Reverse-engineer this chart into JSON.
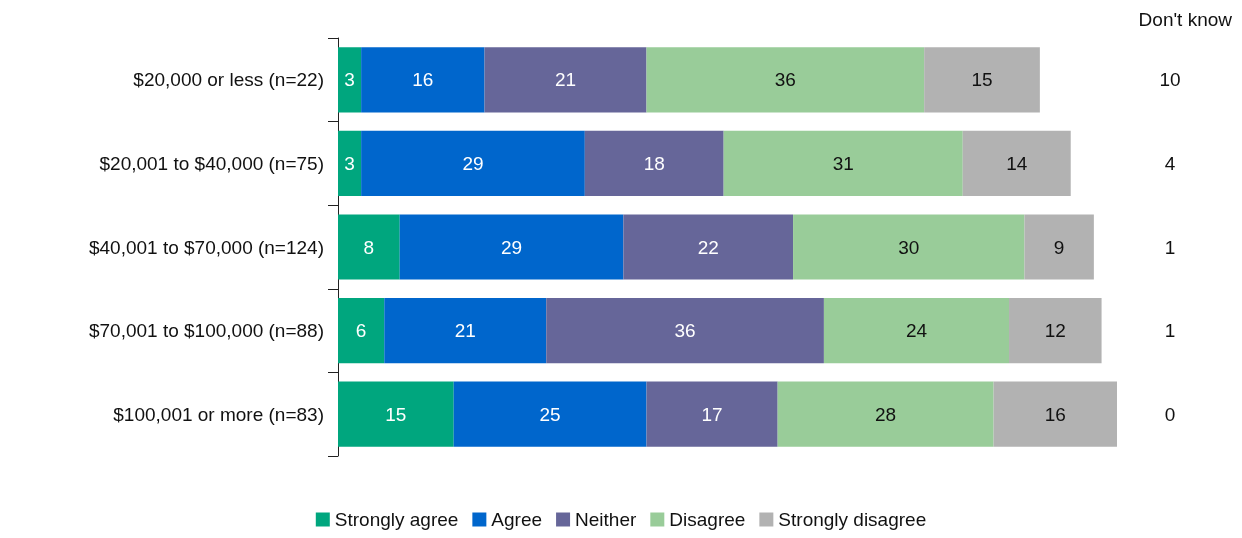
{
  "chart_data": {
    "type": "bar",
    "orientation": "horizontal",
    "stacked": true,
    "data_labels": true,
    "legend": "bottom",
    "categories": [
      "$20,000 or less (n=22)",
      "$20,001 to $40,000 (n=75)",
      "$40,001 to $70,000 (n=124)",
      "$70,001 to $100,000 (n=88)",
      "$100,001 or more (n=83)"
    ],
    "series": [
      {
        "name": "Strongly agree",
        "color": "#00a67e",
        "values": [
          3,
          3,
          8,
          6,
          15
        ]
      },
      {
        "name": "Agree",
        "color": "#0066cc",
        "values": [
          16,
          29,
          29,
          21,
          25
        ]
      },
      {
        "name": "Neither",
        "color": "#666699",
        "values": [
          21,
          18,
          22,
          36,
          17
        ]
      },
      {
        "name": "Disagree",
        "color": "#99cc99",
        "values": [
          36,
          31,
          30,
          24,
          28
        ]
      },
      {
        "name": "Strongly disagree",
        "color": "#b2b2b2",
        "values": [
          15,
          14,
          9,
          12,
          16
        ]
      }
    ],
    "annotations": [
      "Don't know",
      "10",
      "4",
      "1",
      "1",
      "0"
    ]
  }
}
